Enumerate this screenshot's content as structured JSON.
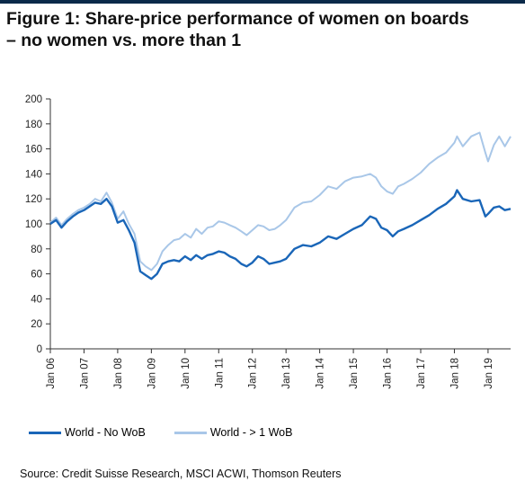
{
  "header": {
    "title_line1": "Figure 1: Share-price performance of women on boards",
    "title_line2": "– no women vs. more than 1"
  },
  "colors": {
    "brand_bar": "#0b2a4a",
    "no_wob": "#1a66b8",
    "wob": "#a9c7e8"
  },
  "source": "Source: Credit Suisse Research, MSCI ACWI, Thomson Reuters",
  "chart_data": {
    "type": "line",
    "title": "Figure 1: Share-price performance of women on boards – no women vs. more than 1",
    "xlabel": "",
    "ylabel": "",
    "ylim": [
      0,
      200
    ],
    "yticks": [
      0,
      20,
      40,
      60,
      80,
      100,
      120,
      140,
      160,
      180,
      200
    ],
    "xlim": [
      2006.0,
      2019.67
    ],
    "xticks": [
      "Jan 06",
      "Jan 07",
      "Jan 08",
      "Jan 09",
      "Jan 10",
      "Jan 11",
      "Jan 12",
      "Jan 13",
      "Jan 14",
      "Jan 15",
      "Jan 16",
      "Jan 17",
      "Jan 18",
      "Jan 19"
    ],
    "grid": false,
    "legend_position": "bottom",
    "series": [
      {
        "name": "World - No WoB",
        "color": "#1a66b8",
        "x": [
          2006.0,
          2006.17,
          2006.33,
          2006.5,
          2006.67,
          2006.83,
          2007.0,
          2007.17,
          2007.33,
          2007.5,
          2007.67,
          2007.83,
          2008.0,
          2008.17,
          2008.33,
          2008.5,
          2008.67,
          2008.83,
          2009.0,
          2009.17,
          2009.33,
          2009.5,
          2009.67,
          2009.83,
          2010.0,
          2010.17,
          2010.33,
          2010.5,
          2010.67,
          2010.83,
          2011.0,
          2011.17,
          2011.33,
          2011.5,
          2011.67,
          2011.83,
          2012.0,
          2012.17,
          2012.33,
          2012.5,
          2012.67,
          2012.83,
          2013.0,
          2013.25,
          2013.5,
          2013.75,
          2014.0,
          2014.25,
          2014.5,
          2014.75,
          2015.0,
          2015.25,
          2015.5,
          2015.67,
          2015.83,
          2016.0,
          2016.17,
          2016.33,
          2016.5,
          2016.75,
          2017.0,
          2017.25,
          2017.5,
          2017.75,
          2018.0,
          2018.08,
          2018.25,
          2018.5,
          2018.75,
          2018.92,
          2019.0,
          2019.17,
          2019.33,
          2019.5,
          2019.67
        ],
        "values": [
          100,
          103,
          97,
          102,
          106,
          109,
          111,
          114,
          117,
          116,
          120,
          114,
          101,
          103,
          95,
          85,
          62,
          59,
          56,
          60,
          68,
          70,
          71,
          70,
          74,
          71,
          75,
          72,
          75,
          76,
          78,
          77,
          74,
          72,
          68,
          66,
          69,
          74,
          72,
          68,
          69,
          70,
          72,
          80,
          83,
          82,
          85,
          90,
          88,
          92,
          96,
          99,
          106,
          104,
          97,
          95,
          90,
          94,
          96,
          99,
          103,
          107,
          112,
          116,
          122,
          127,
          120,
          118,
          119,
          106,
          108,
          113,
          114,
          111,
          112
        ]
      },
      {
        "name": "World - > 1 WoB",
        "color": "#a9c7e8",
        "x": [
          2006.0,
          2006.17,
          2006.33,
          2006.5,
          2006.67,
          2006.83,
          2007.0,
          2007.17,
          2007.33,
          2007.5,
          2007.67,
          2007.83,
          2008.0,
          2008.17,
          2008.33,
          2008.5,
          2008.67,
          2008.83,
          2009.0,
          2009.17,
          2009.33,
          2009.5,
          2009.67,
          2009.83,
          2010.0,
          2010.17,
          2010.33,
          2010.5,
          2010.67,
          2010.83,
          2011.0,
          2011.17,
          2011.33,
          2011.5,
          2011.67,
          2011.83,
          2012.0,
          2012.17,
          2012.33,
          2012.5,
          2012.67,
          2012.83,
          2013.0,
          2013.25,
          2013.5,
          2013.75,
          2014.0,
          2014.25,
          2014.5,
          2014.75,
          2015.0,
          2015.25,
          2015.5,
          2015.67,
          2015.83,
          2016.0,
          2016.17,
          2016.33,
          2016.5,
          2016.75,
          2017.0,
          2017.25,
          2017.5,
          2017.75,
          2018.0,
          2018.08,
          2018.25,
          2018.5,
          2018.75,
          2018.92,
          2019.0,
          2019.17,
          2019.33,
          2019.5,
          2019.67
        ],
        "values": [
          101,
          105,
          99,
          104,
          108,
          111,
          113,
          116,
          120,
          118,
          125,
          117,
          104,
          110,
          100,
          92,
          70,
          66,
          63,
          68,
          78,
          83,
          87,
          88,
          92,
          89,
          96,
          92,
          97,
          98,
          102,
          101,
          99,
          97,
          94,
          91,
          95,
          99,
          98,
          95,
          96,
          99,
          103,
          113,
          117,
          118,
          123,
          130,
          128,
          134,
          137,
          138,
          140,
          137,
          130,
          126,
          124,
          130,
          132,
          136,
          141,
          148,
          153,
          157,
          165,
          170,
          162,
          170,
          173,
          157,
          150,
          163,
          170,
          162,
          170
        ]
      }
    ]
  }
}
